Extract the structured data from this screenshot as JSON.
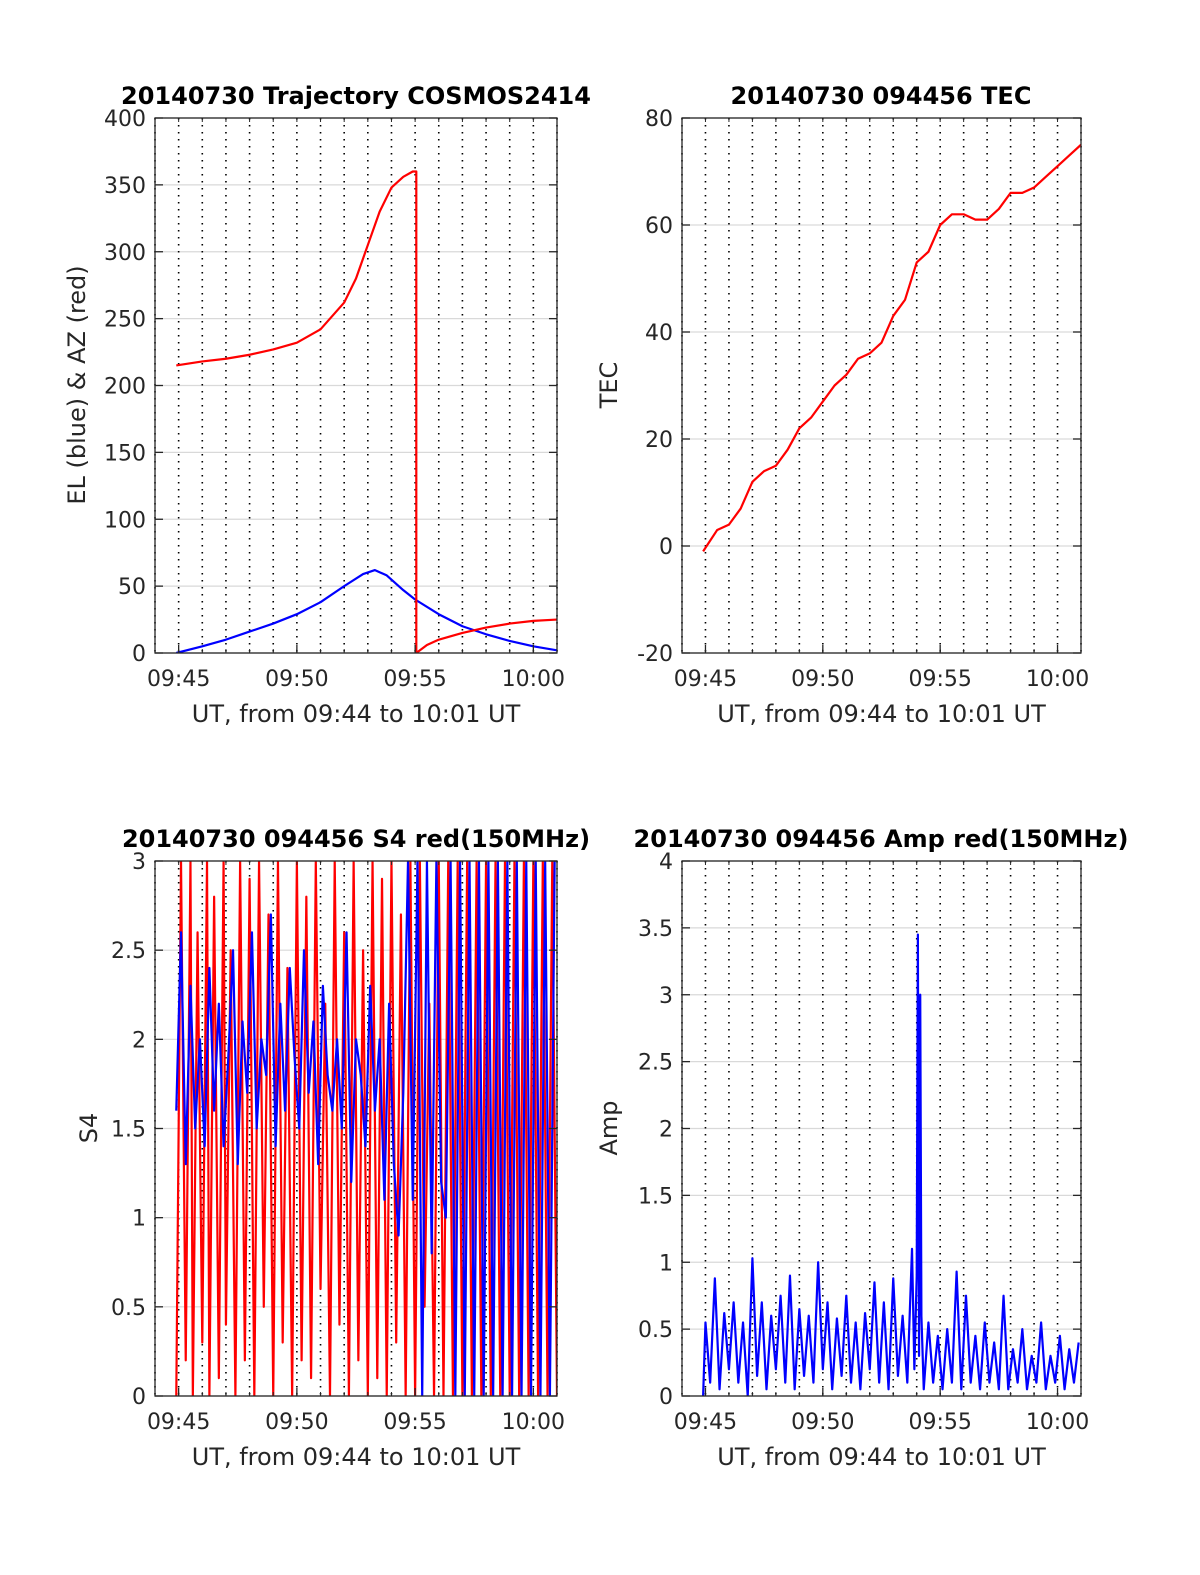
{
  "chart_data": [
    {
      "type": "line",
      "title": "20140730 Trajectory COSMOS2414",
      "xlabel": "UT, from 09:44 to 10:01 UT",
      "ylabel": "EL (blue) & AZ (red)",
      "x_unit": "minutes of hour",
      "xlim": [
        44,
        61
      ],
      "ylim": [
        0,
        400
      ],
      "xticks": [
        45,
        50,
        55,
        60
      ],
      "xtick_labels": [
        "09:45",
        "09:50",
        "09:55",
        "10:00"
      ],
      "yticks": [
        0,
        50,
        100,
        150,
        200,
        250,
        300,
        350,
        400
      ],
      "ytick_labels": [
        "0",
        "50",
        "100",
        "150",
        "200",
        "250",
        "300",
        "350",
        "400"
      ],
      "series": [
        {
          "color": "#0000ff",
          "x": [
            44.9,
            46,
            47,
            48,
            49,
            50,
            51,
            52,
            52.8,
            53.3,
            53.8,
            54.5,
            55,
            56,
            57,
            58,
            59,
            60,
            61
          ],
          "y": [
            0,
            5,
            10,
            16,
            22,
            29,
            38,
            50,
            59,
            62,
            58,
            47,
            40,
            29,
            20,
            14,
            9,
            5,
            2
          ]
        },
        {
          "color": "#ff0000",
          "x": [
            44.9,
            46,
            47,
            48,
            49,
            50,
            51,
            52,
            52.5,
            53,
            53.5,
            54,
            54.5,
            54.9,
            55.05,
            55.05,
            55.5,
            56,
            57,
            58,
            59,
            60,
            61
          ],
          "y": [
            215,
            218,
            220,
            223,
            227,
            232,
            242,
            262,
            280,
            305,
            330,
            348,
            356,
            360,
            360,
            0,
            6,
            10,
            15,
            19,
            22,
            24,
            25
          ]
        }
      ]
    },
    {
      "type": "line",
      "title": "20140730 094456 TEC",
      "xlabel": "UT, from 09:44 to 10:01 UT",
      "ylabel": "TEC",
      "x_unit": "minutes of hour",
      "xlim": [
        44,
        61
      ],
      "ylim": [
        -20,
        80
      ],
      "xticks": [
        45,
        50,
        55,
        60
      ],
      "xtick_labels": [
        "09:45",
        "09:50",
        "09:55",
        "10:00"
      ],
      "yticks": [
        -20,
        0,
        20,
        40,
        60,
        80
      ],
      "ytick_labels": [
        "-20",
        "0",
        "20",
        "40",
        "60",
        "80"
      ],
      "series": [
        {
          "color": "#ff0000",
          "x": [
            44.9,
            45.5,
            46,
            46.5,
            47,
            47.5,
            48,
            48.5,
            49,
            49.5,
            50,
            50.5,
            51,
            51.5,
            52,
            52.5,
            53,
            53.5,
            54,
            54.5,
            55,
            55.5,
            56,
            56.5,
            57,
            57.5,
            58,
            58.5,
            59,
            59.5,
            60,
            60.5,
            61
          ],
          "y": [
            -1,
            3,
            4,
            7,
            12,
            14,
            15,
            18,
            22,
            24,
            27,
            30,
            32,
            35,
            36,
            38,
            43,
            46,
            53,
            55,
            60,
            62,
            62,
            61,
            61,
            63,
            66,
            66,
            67,
            69,
            71,
            73,
            75
          ]
        }
      ]
    },
    {
      "type": "line",
      "title": "20140730 094456 S4 red(150MHz)",
      "xlabel": "UT, from 09:44 to 10:01 UT",
      "ylabel": "S4",
      "x_unit": "minutes of hour",
      "xlim": [
        44,
        61
      ],
      "ylim": [
        0,
        3
      ],
      "xticks": [
        45,
        50,
        55,
        60
      ],
      "xtick_labels": [
        "09:45",
        "09:50",
        "09:55",
        "10:00"
      ],
      "yticks": [
        0,
        0.5,
        1,
        1.5,
        2,
        2.5,
        3
      ],
      "ytick_labels": [
        "0",
        "0.5",
        "1",
        "1.5",
        "2",
        "2.5",
        "3"
      ],
      "series": [
        {
          "color": "#ff0000",
          "x": [
            44.9,
            45.1,
            45.3,
            45.5,
            45.6,
            45.8,
            46.0,
            46.2,
            46.3,
            46.5,
            46.7,
            46.9,
            47.0,
            47.2,
            47.4,
            47.6,
            47.8,
            48.0,
            48.2,
            48.4,
            48.6,
            48.8,
            49.0,
            49.2,
            49.4,
            49.6,
            49.8,
            50.0,
            50.2,
            50.4,
            50.6,
            50.8,
            51.0,
            51.2,
            51.4,
            51.6,
            51.8,
            52.0,
            52.2,
            52.4,
            52.6,
            52.8,
            53.0,
            53.2,
            53.4,
            53.6,
            53.8,
            54.0,
            54.2,
            54.4,
            54.6,
            54.8,
            55.0,
            55.2,
            55.4,
            55.6,
            55.8,
            56.0,
            56.2,
            56.4,
            56.6,
            56.8,
            57.0,
            57.2,
            57.4,
            57.6,
            57.8,
            58.0,
            58.2,
            58.4,
            58.6,
            58.8,
            59.0,
            59.2,
            59.4,
            59.6,
            59.8,
            60.0,
            60.2,
            60.4,
            60.6,
            60.8,
            61.0
          ],
          "y": [
            0,
            3,
            0.2,
            3,
            0,
            2.6,
            0.3,
            3,
            0,
            2.8,
            0.1,
            3,
            0.4,
            2.5,
            0,
            3,
            0.2,
            2.9,
            0,
            3,
            0.5,
            2.7,
            0,
            3,
            0.3,
            2.4,
            0,
            3,
            0.2,
            2.8,
            0.1,
            3,
            0.6,
            2.2,
            0,
            3,
            0.4,
            2.6,
            0,
            3,
            0.2,
            2.5,
            0,
            3,
            0.1,
            2.9,
            0,
            3,
            0.3,
            2.7,
            0,
            3,
            0,
            3,
            0.5,
            2.2,
            0,
            3,
            0,
            3,
            0,
            3,
            0,
            3,
            0,
            3,
            0,
            3,
            0,
            3,
            0,
            3,
            0,
            3,
            0,
            3,
            0,
            3,
            0,
            3,
            0,
            3,
            0
          ]
        },
        {
          "color": "#0000ff",
          "x": [
            44.9,
            45.1,
            45.3,
            45.5,
            45.7,
            45.9,
            46.1,
            46.3,
            46.5,
            46.7,
            46.9,
            47.1,
            47.3,
            47.5,
            47.7,
            47.9,
            48.1,
            48.3,
            48.5,
            48.7,
            48.9,
            49.1,
            49.3,
            49.5,
            49.7,
            49.9,
            50.1,
            50.3,
            50.5,
            50.7,
            50.9,
            51.1,
            51.3,
            51.5,
            51.7,
            51.9,
            52.1,
            52.3,
            52.5,
            52.7,
            52.9,
            53.1,
            53.3,
            53.5,
            53.7,
            53.9,
            54.1,
            54.3,
            54.5,
            54.7,
            54.9,
            55.1,
            55.3,
            55.5,
            55.7,
            55.9,
            56.1,
            56.3,
            56.5,
            56.7,
            56.9,
            57.1,
            57.3,
            57.5,
            57.7,
            57.9,
            58.1,
            58.3,
            58.5,
            58.7,
            58.9,
            59.1,
            59.3,
            59.5,
            59.7,
            59.9,
            60.1,
            60.3,
            60.5,
            60.7,
            60.9
          ],
          "y": [
            1.6,
            2.6,
            1.3,
            2.3,
            1.5,
            2.0,
            1.4,
            2.4,
            1.6,
            2.2,
            1.4,
            1.9,
            2.5,
            1.3,
            2.1,
            1.7,
            2.6,
            1.5,
            2.0,
            1.8,
            2.7,
            1.4,
            2.2,
            1.6,
            2.4,
            1.9,
            1.5,
            2.5,
            1.7,
            2.1,
            1.3,
            2.3,
            1.8,
            1.6,
            2.0,
            1.5,
            2.6,
            1.2,
            2.0,
            1.8,
            1.4,
            2.3,
            1.6,
            2.0,
            1.1,
            2.2,
            1.3,
            0.9,
            1.7,
            3,
            1.1,
            3,
            0,
            3,
            0.8,
            3,
            1.2,
            1.0,
            3,
            0,
            3,
            0,
            3,
            0,
            3,
            0,
            3,
            0,
            3,
            0,
            3,
            0,
            3,
            0,
            3,
            0,
            3,
            0,
            3,
            0,
            3
          ]
        }
      ]
    },
    {
      "type": "line",
      "title": "20140730 094456 Amp red(150MHz)",
      "xlabel": "UT, from 09:44 to 10:01 UT",
      "ylabel": "Amp",
      "x_unit": "minutes of hour",
      "xlim": [
        44,
        61
      ],
      "ylim": [
        0,
        4
      ],
      "xticks": [
        45,
        50,
        55,
        60
      ],
      "xtick_labels": [
        "09:45",
        "09:50",
        "09:55",
        "10:00"
      ],
      "yticks": [
        0,
        0.5,
        1,
        1.5,
        2,
        2.5,
        3,
        3.5,
        4
      ],
      "ytick_labels": [
        "0",
        "0.5",
        "1",
        "1.5",
        "2",
        "2.5",
        "3",
        "3.5",
        "4"
      ],
      "series": [
        {
          "color": "#0000ff",
          "x": [
            44.9,
            45.0,
            45.2,
            45.4,
            45.6,
            45.8,
            46.0,
            46.2,
            46.4,
            46.6,
            46.8,
            47.0,
            47.2,
            47.4,
            47.6,
            47.8,
            48.0,
            48.2,
            48.4,
            48.6,
            48.8,
            49.0,
            49.2,
            49.4,
            49.6,
            49.8,
            50.0,
            50.2,
            50.4,
            50.6,
            50.8,
            51.0,
            51.2,
            51.4,
            51.6,
            51.8,
            52.0,
            52.2,
            52.4,
            52.6,
            52.8,
            53.0,
            53.2,
            53.4,
            53.6,
            53.8,
            53.9,
            54.0,
            54.05,
            54.1,
            54.15,
            54.2,
            54.3,
            54.5,
            54.7,
            54.9,
            55.1,
            55.3,
            55.5,
            55.7,
            55.9,
            56.1,
            56.3,
            56.5,
            56.7,
            56.9,
            57.1,
            57.3,
            57.5,
            57.7,
            57.9,
            58.1,
            58.3,
            58.5,
            58.7,
            58.9,
            59.1,
            59.3,
            59.5,
            59.7,
            59.9,
            60.1,
            60.3,
            60.5,
            60.7,
            60.9
          ],
          "y": [
            0,
            0.55,
            0.1,
            0.88,
            0.05,
            0.62,
            0.2,
            0.7,
            0.1,
            0.55,
            0.0,
            1.03,
            0.15,
            0.7,
            0.05,
            0.6,
            0.2,
            0.75,
            0.1,
            0.9,
            0.05,
            0.65,
            0.15,
            0.6,
            0.1,
            1.0,
            0.2,
            0.7,
            0.05,
            0.58,
            0.15,
            0.75,
            0.1,
            0.55,
            0.05,
            0.62,
            0.2,
            0.85,
            0.1,
            0.7,
            0.05,
            0.88,
            0.15,
            0.6,
            0.1,
            1.1,
            0.2,
            0.9,
            3.45,
            0.3,
            3.0,
            0.6,
            0.05,
            0.55,
            0.1,
            0.45,
            0.05,
            0.5,
            0.1,
            0.93,
            0.05,
            0.75,
            0.1,
            0.45,
            0.05,
            0.55,
            0.1,
            0.4,
            0.05,
            0.75,
            0.05,
            0.35,
            0.1,
            0.5,
            0.05,
            0.3,
            0.1,
            0.55,
            0.05,
            0.3,
            0.1,
            0.45,
            0.05,
            0.35,
            0.1,
            0.4
          ]
        }
      ]
    }
  ]
}
